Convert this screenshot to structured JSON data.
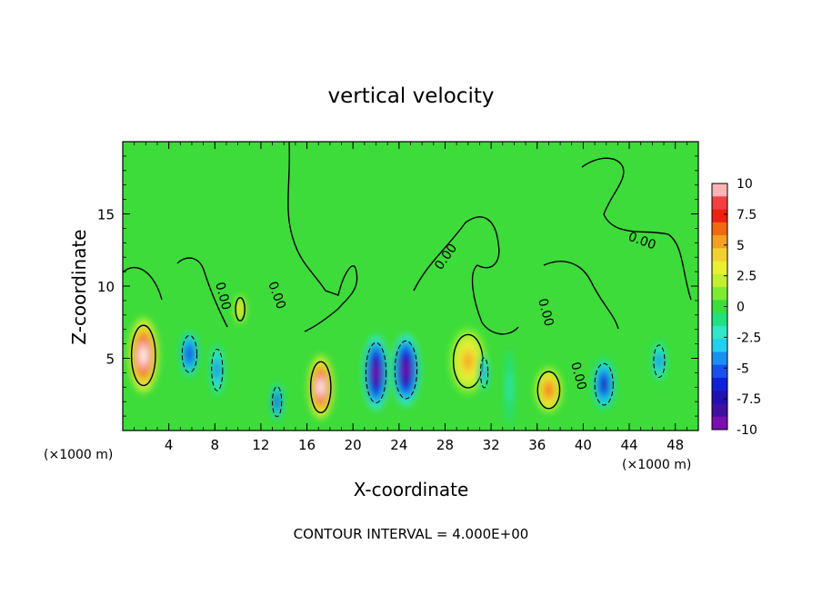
{
  "chart_data": {
    "type": "heatmap",
    "title": "vertical velocity",
    "xlabel": "X-coordinate",
    "ylabel": "Z-coordinate",
    "x_unit_left": "(×1000 m)",
    "x_unit_right": "(×1000 m)",
    "footer": "CONTOUR INTERVAL = 4.000E+00",
    "xlim": [
      0,
      50
    ],
    "ylim": [
      0,
      20
    ],
    "x_ticks": [
      4,
      8,
      12,
      16,
      20,
      24,
      28,
      32,
      36,
      40,
      44,
      48
    ],
    "y_ticks": [
      5,
      10,
      15
    ],
    "colorbar": {
      "range": [
        -10,
        10
      ],
      "ticks": [
        "10",
        "7.5",
        "5",
        "2.5",
        "0",
        "-2.5",
        "-5",
        "-7.5",
        "-10"
      ],
      "tick_values": [
        10,
        7.5,
        5,
        2.5,
        0,
        -2.5,
        -5,
        -7.5,
        -10
      ],
      "colors": [
        "#fbb4b4",
        "#f44040",
        "#ee2010",
        "#f06a10",
        "#f5a020",
        "#f2d030",
        "#e8f030",
        "#c0f030",
        "#7cec30",
        "#3cdc3c",
        "#20e080",
        "#30e8c8",
        "#20d0f0",
        "#1890f0",
        "#1850f0",
        "#1020d8",
        "#2010b0",
        "#4010a0",
        "#7a10b0"
      ]
    },
    "contour_label": "0.00",
    "cells": [
      {
        "x": 1.8,
        "z": 5.2,
        "w": 12,
        "rx": 1.3,
        "rz": 2.6
      },
      {
        "x": 5.8,
        "z": 5.3,
        "w": -7,
        "rx": 0.8,
        "rz": 1.6
      },
      {
        "x": 8.2,
        "z": 4.2,
        "w": -6,
        "rx": 0.6,
        "rz": 1.8
      },
      {
        "x": 10.2,
        "z": 8.4,
        "w": 5,
        "rx": 0.5,
        "rz": 1.0
      },
      {
        "x": 13.4,
        "z": 2.0,
        "w": -7,
        "rx": 0.5,
        "rz": 1.3
      },
      {
        "x": 17.2,
        "z": 3.0,
        "w": 12,
        "rx": 1.1,
        "rz": 2.2
      },
      {
        "x": 22.0,
        "z": 4.0,
        "w": -11,
        "rx": 1.1,
        "rz": 2.6
      },
      {
        "x": 24.6,
        "z": 4.2,
        "w": -11,
        "rx": 1.2,
        "rz": 2.5
      },
      {
        "x": 30.0,
        "z": 4.8,
        "w": 6,
        "rx": 1.6,
        "rz": 2.3
      },
      {
        "x": 31.4,
        "z": 4.0,
        "w": -6,
        "rx": 0.4,
        "rz": 1.3
      },
      {
        "x": 33.6,
        "z": 3.0,
        "w": -2.5,
        "rx": 0.4,
        "rz": 2.6
      },
      {
        "x": 37.0,
        "z": 2.8,
        "w": 7,
        "rx": 1.2,
        "rz": 1.6
      },
      {
        "x": 41.8,
        "z": 3.2,
        "w": -8,
        "rx": 1.0,
        "rz": 1.8
      },
      {
        "x": 46.6,
        "z": 4.8,
        "w": -6,
        "rx": 0.6,
        "rz": 1.4
      }
    ]
  }
}
